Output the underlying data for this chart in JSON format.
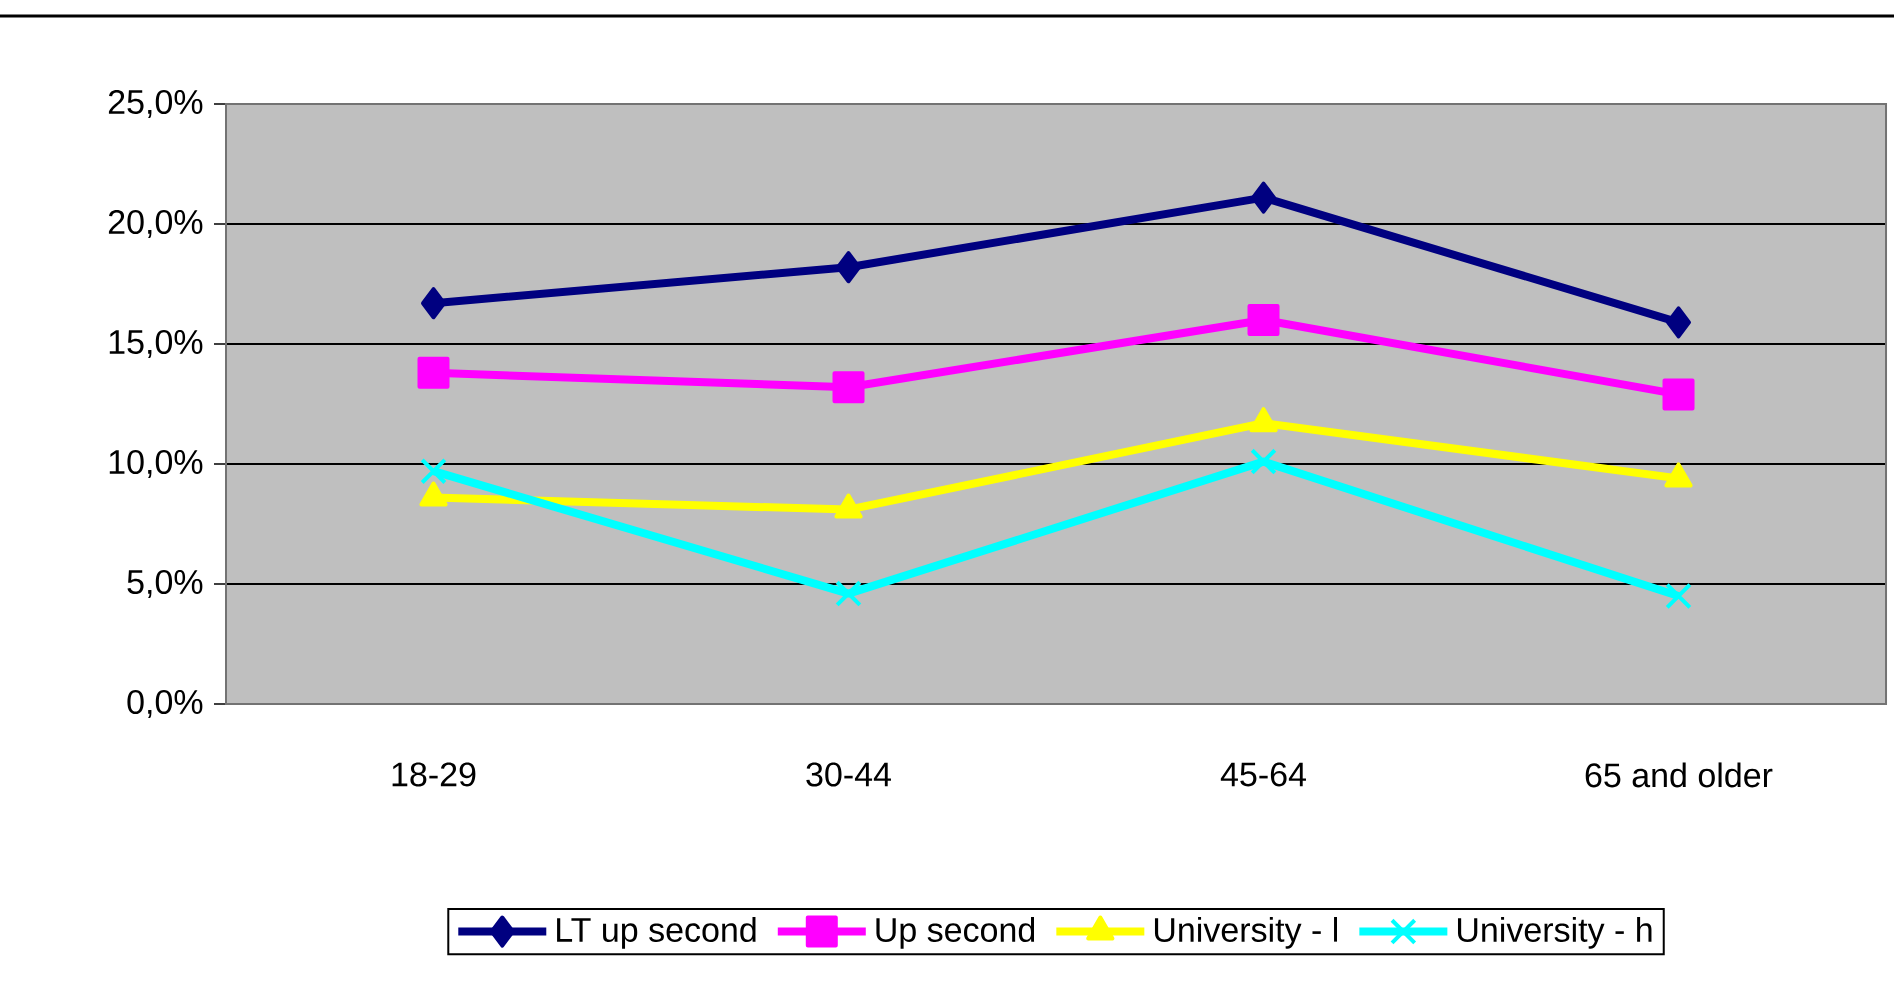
{
  "chart_data": {
    "type": "line",
    "categories": [
      "18-29",
      "30-44",
      "45-64",
      "65 and older"
    ],
    "series": [
      {
        "name": "LT up second",
        "color": "#000080",
        "marker": "diamond",
        "values": [
          16.7,
          18.2,
          21.1,
          15.9
        ]
      },
      {
        "name": "Up second",
        "color": "#ff00ff",
        "marker": "square",
        "values": [
          13.8,
          13.2,
          16.0,
          12.9
        ]
      },
      {
        "name": "University - l",
        "color": "#ffff00",
        "marker": "triangle",
        "values": [
          8.6,
          8.1,
          11.7,
          9.4
        ]
      },
      {
        "name": "University - h",
        "color": "#00ffff",
        "marker": "cross",
        "values": [
          9.7,
          4.6,
          10.1,
          4.5
        ]
      }
    ],
    "ylim": [
      0,
      25
    ],
    "yticks": [
      {
        "value": 0,
        "label": "0,0%"
      },
      {
        "value": 5,
        "label": "5,0%"
      },
      {
        "value": 10,
        "label": "10,0%"
      },
      {
        "value": 15,
        "label": "15,0%"
      },
      {
        "value": 20,
        "label": "20,0%"
      },
      {
        "value": 25,
        "label": "25,0%"
      }
    ],
    "grid": "y",
    "legend": "bottom",
    "line_style": "solid"
  }
}
